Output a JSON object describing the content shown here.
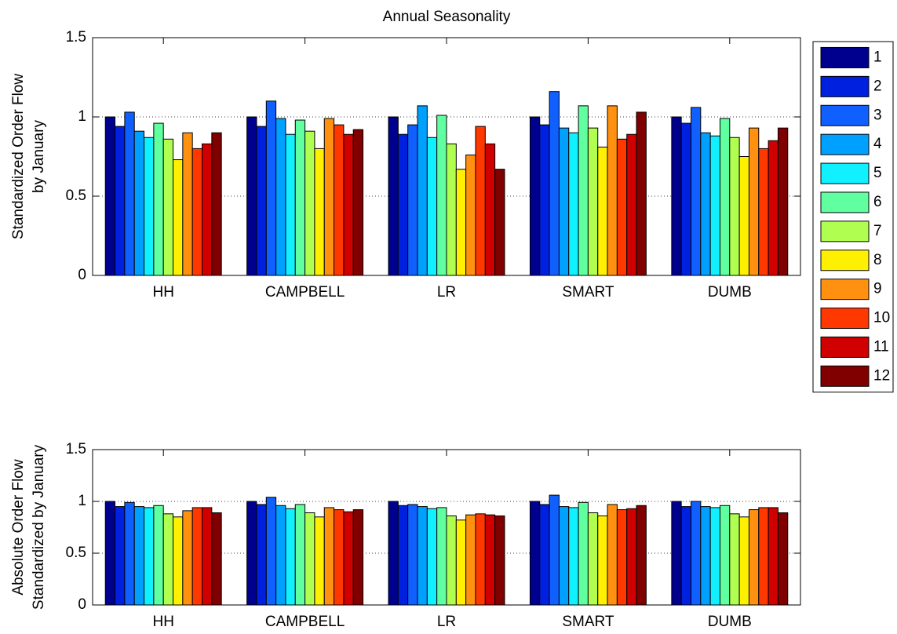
{
  "chart_data": [
    {
      "type": "bar",
      "title": "Annual Seasonality",
      "ylabel": [
        "Standardized Order Flow",
        "by January"
      ],
      "categories": [
        "HH",
        "CAMPBELL",
        "LR",
        "SMART",
        "DUMB"
      ],
      "ylim": [
        0,
        1.5
      ],
      "yticks": [
        0,
        0.5,
        1,
        1.5
      ],
      "grid": true,
      "legend": "outside-right",
      "series": [
        {
          "name": "1",
          "color": "#00008f",
          "values": [
            1,
            1,
            1,
            1,
            1
          ]
        },
        {
          "name": "2",
          "color": "#0020df",
          "values": [
            0.94,
            0.94,
            0.89,
            0.95,
            0.96
          ]
        },
        {
          "name": "3",
          "color": "#1060ff",
          "values": [
            1.03,
            1.1,
            0.95,
            1.16,
            1.06
          ]
        },
        {
          "name": "4",
          "color": "#00a0ff",
          "values": [
            0.91,
            0.99,
            1.07,
            0.93,
            0.9
          ]
        },
        {
          "name": "5",
          "color": "#10f0ff",
          "values": [
            0.87,
            0.89,
            0.87,
            0.9,
            0.88
          ]
        },
        {
          "name": "6",
          "color": "#60ffa0",
          "values": [
            0.96,
            0.98,
            1.01,
            1.07,
            0.99
          ]
        },
        {
          "name": "7",
          "color": "#b0ff50",
          "values": [
            0.86,
            0.91,
            0.83,
            0.93,
            0.87
          ]
        },
        {
          "name": "8",
          "color": "#ffef00",
          "values": [
            0.73,
            0.8,
            0.67,
            0.81,
            0.75
          ]
        },
        {
          "name": "9",
          "color": "#ff9010",
          "values": [
            0.9,
            0.99,
            0.76,
            1.07,
            0.93
          ]
        },
        {
          "name": "10",
          "color": "#ff3800",
          "values": [
            0.8,
            0.95,
            0.94,
            0.86,
            0.8
          ]
        },
        {
          "name": "11",
          "color": "#d00000",
          "values": [
            0.83,
            0.89,
            0.83,
            0.89,
            0.85
          ]
        },
        {
          "name": "12",
          "color": "#800000",
          "values": [
            0.9,
            0.92,
            0.67,
            1.03,
            0.93
          ]
        }
      ]
    },
    {
      "type": "bar",
      "ylabel": [
        "Absolute Order Flow",
        "Standardized by January"
      ],
      "categories": [
        "HH",
        "CAMPBELL",
        "LR",
        "SMART",
        "DUMB"
      ],
      "ylim": [
        0,
        1.5
      ],
      "yticks": [
        0,
        0.5,
        1,
        1.5
      ],
      "grid": true,
      "series": [
        {
          "color": "#00008f",
          "values": [
            1,
            1,
            1,
            1,
            1
          ]
        },
        {
          "color": "#0020df",
          "values": [
            0.95,
            0.97,
            0.96,
            0.97,
            0.95
          ]
        },
        {
          "color": "#1060ff",
          "values": [
            0.99,
            1.04,
            0.97,
            1.06,
            1.0
          ]
        },
        {
          "color": "#00a0ff",
          "values": [
            0.95,
            0.96,
            0.95,
            0.95,
            0.95
          ]
        },
        {
          "color": "#10f0ff",
          "values": [
            0.94,
            0.93,
            0.93,
            0.94,
            0.94
          ]
        },
        {
          "color": "#60ffa0",
          "values": [
            0.96,
            0.97,
            0.94,
            0.99,
            0.96
          ]
        },
        {
          "color": "#b0ff50",
          "values": [
            0.88,
            0.89,
            0.86,
            0.89,
            0.88
          ]
        },
        {
          "color": "#ffef00",
          "values": [
            0.85,
            0.85,
            0.82,
            0.86,
            0.85
          ]
        },
        {
          "color": "#ff9010",
          "values": [
            0.91,
            0.94,
            0.87,
            0.97,
            0.92
          ]
        },
        {
          "color": "#ff3800",
          "values": [
            0.94,
            0.92,
            0.88,
            0.92,
            0.94
          ]
        },
        {
          "color": "#d00000",
          "values": [
            0.94,
            0.9,
            0.87,
            0.93,
            0.94
          ]
        },
        {
          "color": "#800000",
          "values": [
            0.89,
            0.92,
            0.86,
            0.96,
            0.89
          ]
        }
      ]
    }
  ]
}
